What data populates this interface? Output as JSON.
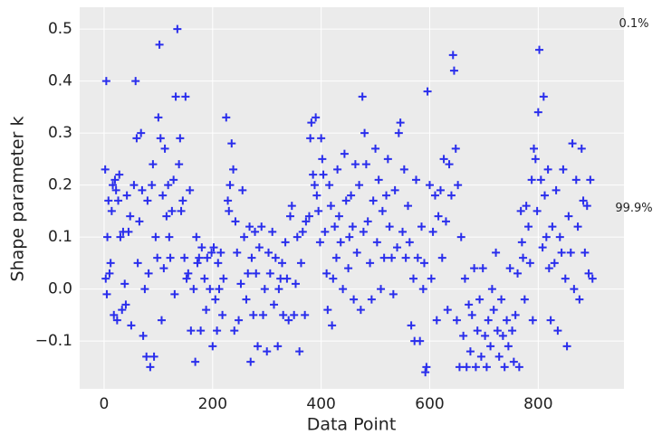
{
  "chart_data": {
    "type": "scatter",
    "xlabel": "Data Point",
    "ylabel": "Shape parameter k",
    "annotations": [
      {
        "text": "0.1%",
        "y": 0.51
      },
      {
        "text": "99.9%",
        "y": 0.155
      }
    ],
    "xlim": [
      -45,
      958
    ],
    "ylim": [
      -0.192,
      0.542
    ],
    "xticks": [
      0,
      200,
      400,
      600,
      800
    ],
    "yticks": [
      {
        "value": -0.1,
        "label": "−0.1"
      },
      {
        "value": 0,
        "label": "0.0"
      },
      0.1,
      0.2,
      0.3,
      0.4,
      0.5
    ],
    "grid": true,
    "marker": "+",
    "series": [
      {
        "color": "#2a2eec",
        "x": [
          2,
          3,
          4,
          5,
          6,
          8,
          10,
          12,
          14,
          16,
          18,
          20,
          22,
          24,
          26,
          28,
          30,
          33,
          35,
          38,
          40,
          42,
          45,
          48,
          50,
          55,
          58,
          60,
          62,
          65,
          68,
          70,
          72,
          75,
          78,
          80,
          82,
          85,
          88,
          90,
          92,
          95,
          98,
          100,
          102,
          104,
          106,
          108,
          110,
          112,
          115,
          118,
          120,
          122,
          125,
          128,
          130,
          132,
          135,
          138,
          140,
          142,
          145,
          148,
          150,
          152,
          155,
          158,
          160,
          165,
          168,
          170,
          172,
          175,
          178,
          180,
          185,
          188,
          190,
          195,
          198,
          200,
          202,
          205,
          208,
          210,
          212,
          215,
          218,
          220,
          225,
          228,
          230,
          232,
          235,
          238,
          240,
          242,
          245,
          248,
          252,
          255,
          258,
          262,
          265,
          268,
          270,
          272,
          275,
          278,
          280,
          283,
          286,
          290,
          293,
          296,
          300,
          303,
          306,
          310,
          313,
          316,
          320,
          322,
          325,
          328,
          330,
          334,
          337,
          340,
          343,
          346,
          350,
          353,
          356,
          360,
          363,
          366,
          370,
          372,
          378,
          380,
          382,
          385,
          388,
          390,
          392,
          395,
          398,
          400,
          402,
          404,
          407,
          410,
          412,
          415,
          418,
          420,
          422,
          425,
          428,
          430,
          433,
          436,
          440,
          443,
          446,
          450,
          452,
          455,
          458,
          460,
          463,
          466,
          470,
          473,
          476,
          478,
          480,
          483,
          486,
          490,
          493,
          496,
          500,
          503,
          506,
          510,
          513,
          516,
          520,
          523,
          526,
          530,
          533,
          536,
          540,
          543,
          546,
          550,
          553,
          556,
          560,
          563,
          566,
          570,
          572,
          575,
          578,
          582,
          585,
          588,
          590,
          592,
          594,
          596,
          600,
          603,
          606,
          610,
          613,
          616,
          620,
          623,
          626,
          630,
          633,
          636,
          640,
          643,
          645,
          648,
          650,
          652,
          655,
          658,
          662,
          665,
          668,
          672,
          675,
          678,
          682,
          685,
          688,
          692,
          695,
          698,
          702,
          705,
          708,
          712,
          715,
          718,
          722,
          725,
          728,
          732,
          735,
          738,
          742,
          745,
          748,
          752,
          755,
          758,
          762,
          765,
          768,
          770,
          772,
          775,
          778,
          782,
          785,
          788,
          790,
          792,
          795,
          798,
          800,
          802,
          805,
          808,
          810,
          812,
          815,
          818,
          820,
          823,
          826,
          830,
          833,
          836,
          840,
          843,
          846,
          850,
          853,
          856,
          860,
          863,
          866,
          870,
          873,
          876,
          880,
          883,
          886,
          890,
          893,
          896,
          900
        ],
        "values": [
          0.23,
          0.02,
          0.4,
          -0.01,
          0.1,
          0.17,
          0.03,
          0.05,
          0.15,
          0.2,
          -0.05,
          0.21,
          0.19,
          -0.06,
          0.17,
          0.22,
          0.1,
          -0.04,
          0.11,
          0.01,
          -0.03,
          0.18,
          0.11,
          0.14,
          -0.07,
          0.2,
          0.4,
          0.29,
          0.05,
          0.13,
          0.3,
          0.19,
          -0.09,
          0.0,
          -0.13,
          0.17,
          0.03,
          -0.15,
          0.2,
          0.24,
          -0.13,
          0.1,
          0.06,
          0.33,
          0.47,
          0.29,
          -0.06,
          0.18,
          0.04,
          0.27,
          0.14,
          0.2,
          0.1,
          0.06,
          0.15,
          0.21,
          -0.01,
          0.37,
          0.5,
          0.24,
          0.29,
          0.15,
          0.17,
          0.06,
          0.37,
          0.02,
          0.03,
          0.19,
          -0.08,
          0.0,
          -0.14,
          0.1,
          0.05,
          0.06,
          -0.08,
          0.08,
          0.02,
          -0.04,
          0.06,
          0.0,
          0.07,
          -0.11,
          0.08,
          -0.02,
          -0.08,
          0.05,
          0.0,
          0.07,
          -0.05,
          0.02,
          0.33,
          0.17,
          0.15,
          0.2,
          0.28,
          0.23,
          -0.08,
          0.13,
          0.07,
          -0.06,
          0.01,
          0.19,
          0.1,
          -0.02,
          0.03,
          0.12,
          -0.14,
          0.06,
          -0.05,
          0.11,
          0.03,
          -0.11,
          0.08,
          0.12,
          -0.05,
          0.0,
          -0.12,
          0.07,
          0.03,
          0.11,
          -0.03,
          0.06,
          -0.11,
          0.0,
          0.02,
          0.05,
          -0.05,
          0.09,
          0.02,
          -0.06,
          0.14,
          0.16,
          -0.05,
          0.01,
          0.1,
          -0.12,
          0.05,
          0.11,
          -0.05,
          0.13,
          0.14,
          0.29,
          0.32,
          0.22,
          0.2,
          0.33,
          0.18,
          0.15,
          0.09,
          0.29,
          0.25,
          0.22,
          0.11,
          0.03,
          -0.04,
          0.2,
          0.16,
          -0.07,
          0.02,
          0.12,
          0.06,
          0.23,
          0.14,
          0.09,
          0.0,
          0.26,
          0.17,
          0.04,
          0.1,
          0.18,
          0.12,
          -0.02,
          0.24,
          0.07,
          0.2,
          -0.04,
          0.37,
          0.11,
          0.3,
          0.24,
          0.13,
          0.05,
          -0.02,
          0.17,
          0.27,
          0.09,
          0.21,
          0.0,
          0.15,
          0.06,
          0.18,
          0.25,
          0.12,
          0.06,
          -0.01,
          0.19,
          0.08,
          0.3,
          0.32,
          0.11,
          0.23,
          0.06,
          0.16,
          0.09,
          -0.07,
          0.02,
          -0.1,
          0.21,
          0.06,
          -0.1,
          0.12,
          0.0,
          0.05,
          -0.16,
          -0.15,
          0.38,
          0.2,
          0.02,
          0.11,
          0.18,
          -0.06,
          0.14,
          0.19,
          0.06,
          0.25,
          0.13,
          -0.04,
          0.24,
          0.18,
          0.45,
          0.42,
          0.27,
          -0.06,
          0.2,
          -0.15,
          0.1,
          -0.09,
          0.02,
          -0.15,
          -0.03,
          -0.12,
          -0.05,
          0.04,
          -0.15,
          -0.08,
          -0.02,
          -0.13,
          0.04,
          -0.09,
          -0.15,
          -0.06,
          -0.11,
          0.0,
          -0.04,
          0.07,
          -0.08,
          -0.13,
          -0.02,
          -0.09,
          -0.15,
          -0.06,
          -0.11,
          0.04,
          -0.08,
          -0.14,
          -0.05,
          0.03,
          -0.15,
          0.15,
          0.09,
          0.06,
          -0.02,
          0.16,
          0.12,
          0.05,
          0.21,
          -0.06,
          0.27,
          0.25,
          0.15,
          0.34,
          0.46,
          0.21,
          0.08,
          0.37,
          0.18,
          0.1,
          0.23,
          0.04,
          -0.06,
          0.12,
          0.05,
          0.19,
          -0.08,
          0.1,
          0.07,
          0.23,
          0.02,
          -0.11,
          0.14,
          0.07,
          0.28,
          0.0,
          0.21,
          0.12,
          -0.02,
          0.27,
          0.17,
          0.07,
          0.16,
          0.03,
          0.21,
          0.02
        ]
      }
    ]
  }
}
